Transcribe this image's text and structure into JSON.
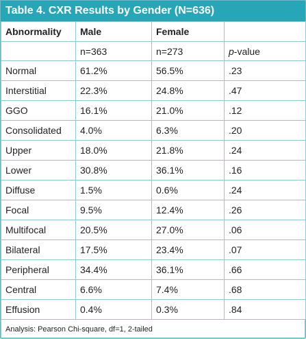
{
  "title": "Table 4. CXR Results by Gender (N=636)",
  "headers": [
    "Abnormality",
    "Male",
    "Female",
    ""
  ],
  "subheader": {
    "male_n": "n=363",
    "female_n": "n=273",
    "pvalue_prefix": "p",
    "pvalue_suffix": "-value"
  },
  "rows": [
    {
      "abnormality": "Normal",
      "male": "61.2%",
      "female": "56.5%",
      "p": ".23"
    },
    {
      "abnormality": "Interstitial",
      "male": "22.3%",
      "female": "24.8%",
      "p": ".47"
    },
    {
      "abnormality": "GGO",
      "male": "16.1%",
      "female": "21.0%",
      "p": ".12"
    },
    {
      "abnormality": "Consolidated",
      "male": "4.0%",
      "female": "6.3%",
      "p": ".20"
    },
    {
      "abnormality": "Upper",
      "male": "18.0%",
      "female": "21.8%",
      "p": ".24"
    },
    {
      "abnormality": "Lower",
      "male": "30.8%",
      "female": "36.1%",
      "p": ".16"
    },
    {
      "abnormality": "Diffuse",
      "male": "1.5%",
      "female": "0.6%",
      "p": ".24"
    },
    {
      "abnormality": "Focal",
      "male": "9.5%",
      "female": "12.4%",
      "p": ".26"
    },
    {
      "abnormality": "Multifocal",
      "male": "20.5%",
      "female": "27.0%",
      "p": ".06"
    },
    {
      "abnormality": "Bilateral",
      "male": "17.5%",
      "female": "23.4%",
      "p": ".07"
    },
    {
      "abnormality": "Peripheral",
      "male": "34.4%",
      "female": "36.1%",
      "p": ".66"
    },
    {
      "abnormality": "Central",
      "male": "6.6%",
      "female": "7.4%",
      "p": ".68"
    },
    {
      "abnormality": "Effusion",
      "male": "0.4%",
      "female": "0.3%",
      "p": ".84"
    }
  ],
  "footnote": "Analysis: Pearson Chi-square, df=1, 2-tailed",
  "colors": {
    "title_bg": "#27a6b8",
    "border": "#8ec9d3"
  }
}
